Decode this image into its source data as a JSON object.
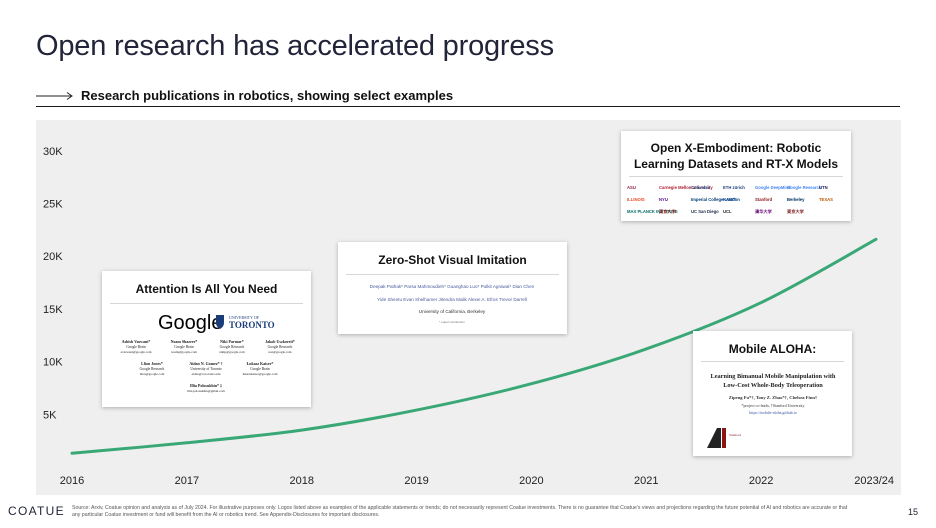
{
  "title": "Open research has accelerated progress",
  "subtitle": "Research publications in robotics, showing select examples",
  "chart_data": {
    "type": "line",
    "title": "",
    "xlabel": "",
    "ylabel": "",
    "x": [
      "2016",
      "2017",
      "2018",
      "2019",
      "2020",
      "2021",
      "2022",
      "2023/24"
    ],
    "series": [
      {
        "values": [
          1300,
          2300,
          3500,
          5400,
          7900,
          11200,
          15600,
          21600
        ]
      }
    ],
    "ylim": [
      0,
      31500
    ],
    "yticks": [
      5000,
      10000,
      15000,
      20000,
      25000,
      30000
    ],
    "ytick_labels": [
      "5K",
      "10K",
      "15K",
      "20K",
      "25K",
      "30K"
    ],
    "line_color": "#3aa876",
    "grid": false
  },
  "cards": {
    "attention": {
      "title": "Attention Is All You Need",
      "google": "Google",
      "toronto_small": "UNIVERSITY OF",
      "toronto": "TORONTO",
      "authors_row1": [
        "Ashish Vaswani*",
        "Noam Shazeer*",
        "Niki Parmar*",
        "Jakob Uszkoreit*"
      ],
      "affil_row1": [
        "Google Brain",
        "Google Brain",
        "Google Research",
        "Google Research"
      ],
      "email_row1": [
        "avaswani@google.com",
        "noam@google.com",
        "nikip@google.com",
        "usz@google.com"
      ],
      "authors_row2": [
        "Llion Jones*",
        "Aidan N. Gomez* †",
        "Łukasz Kaiser*"
      ],
      "affil_row2": [
        "Google Research",
        "University of Toronto",
        "Google Brain"
      ],
      "email_row2": [
        "llion@google.com",
        "aidan@cs.toronto.edu",
        "lukaszkaiser@google.com"
      ],
      "author_last": "Illia Polosukhin* ‡",
      "email_last": "illia.polosukhin@gmail.com"
    },
    "zeroshot": {
      "title": "Zero-Shot Visual Imitation",
      "authors_row1": "Deepak Pathak*   Parsa Mahmoudieh*   Guanghao Luo*   Pulkit Agrawal*   Dian Chen",
      "authors_row2": "Yide Shentu   Evan Shelhamer   Jitendra Malik   Alexei A. Efros   Trevor Darrell",
      "affiliation": "University of California, Berkeley",
      "note": "* equal contribution"
    },
    "openx": {
      "title_line1": "Open X-Embodiment: Robotic",
      "title_line2": "Learning Datasets and RT-X Models",
      "logos": [
        "ASU",
        "Carnegie Mellon University",
        "Columbia",
        "ETH zürich",
        "Google DeepMind",
        "Google Research",
        "UTN",
        "ILLINOIS",
        "NYU",
        "Imperial College London",
        "KAIST",
        "Stanford",
        "Berkeley",
        "TEXAS",
        "MAX PLANCK INSTITUTE",
        "東京大学",
        "UC San Diego",
        "UCL",
        "清华大学",
        "東京大学"
      ]
    },
    "aloha": {
      "title": "Mobile ALOHA:",
      "paper_title1": "Learning Bimanual Mobile Manipulation with",
      "paper_title2": "Low-Cost Whole-Body Teleoperation",
      "authors": "Zipeng Fu*†, Tony Z. Zhao*†, Chelsea Finn†",
      "affil": "*project co-leads, †Stanford University",
      "url": "https://mobile-aloha.github.io",
      "logo_text": "Stanford"
    }
  },
  "footer": {
    "brand": "COATUE",
    "source": "Source: Arxiv, Coatue opinion and analysis as of July 2024. For illustrative purposes only. Logos listed above as examples of the applicable statements or trends; do not necessarily represent Coatue investments. There is no guarantee that Coatue's views and projections regarding the future potential of AI and robotics are accurate or that any particular Coatue investment or fund will benefit from the AI or robotics trend. See Appendix-Disclosures for important disclosures.",
    "page": "15"
  }
}
